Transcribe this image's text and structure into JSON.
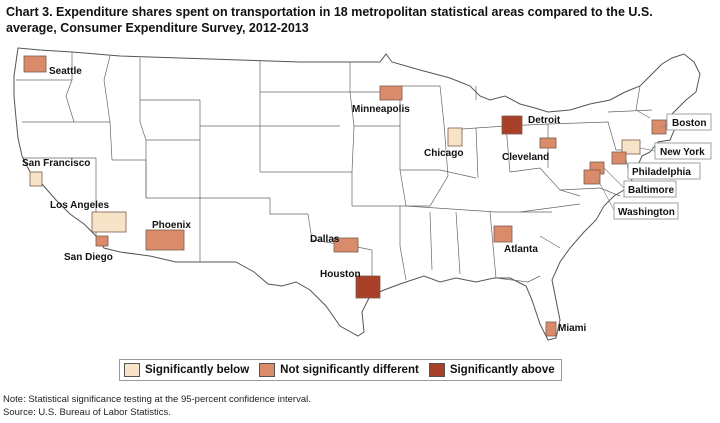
{
  "title": "Chart 3. Expenditure shares spent on transportation in 18 metropolitan statistical areas compared to the U.S. average, Consumer Expenditure Survey, 2012-2013",
  "legend": {
    "below": "Significantly below",
    "not_different": "Not significantly different",
    "above": "Significantly above"
  },
  "colors": {
    "below": "#f7e4c8",
    "not_different": "#d98b6a",
    "above": "#a8402a",
    "state_border": "#555555",
    "land": "#ffffff"
  },
  "note": "Note: Statistical significance testing at the 95-percent confidence interval.",
  "source": "Source: U.S. Bureau of Labor Statistics.",
  "cities": [
    {
      "name": "Seattle",
      "category": "not_different"
    },
    {
      "name": "San Francisco",
      "category": "below"
    },
    {
      "name": "Los Angeles",
      "category": "below"
    },
    {
      "name": "San Diego",
      "category": "not_different"
    },
    {
      "name": "Phoenix",
      "category": "not_different"
    },
    {
      "name": "Minneapolis",
      "category": "not_different"
    },
    {
      "name": "Chicago",
      "category": "below"
    },
    {
      "name": "Detroit",
      "category": "above"
    },
    {
      "name": "Cleveland",
      "category": "not_different"
    },
    {
      "name": "Dallas",
      "category": "not_different"
    },
    {
      "name": "Houston",
      "category": "above"
    },
    {
      "name": "Atlanta",
      "category": "not_different"
    },
    {
      "name": "Miami",
      "category": "not_different"
    },
    {
      "name": "Boston",
      "category": "not_different"
    },
    {
      "name": "New York",
      "category": "below"
    },
    {
      "name": "Philadelphia",
      "category": "not_different"
    },
    {
      "name": "Baltimore",
      "category": "not_different"
    },
    {
      "name": "Washington",
      "category": "not_different"
    }
  ]
}
